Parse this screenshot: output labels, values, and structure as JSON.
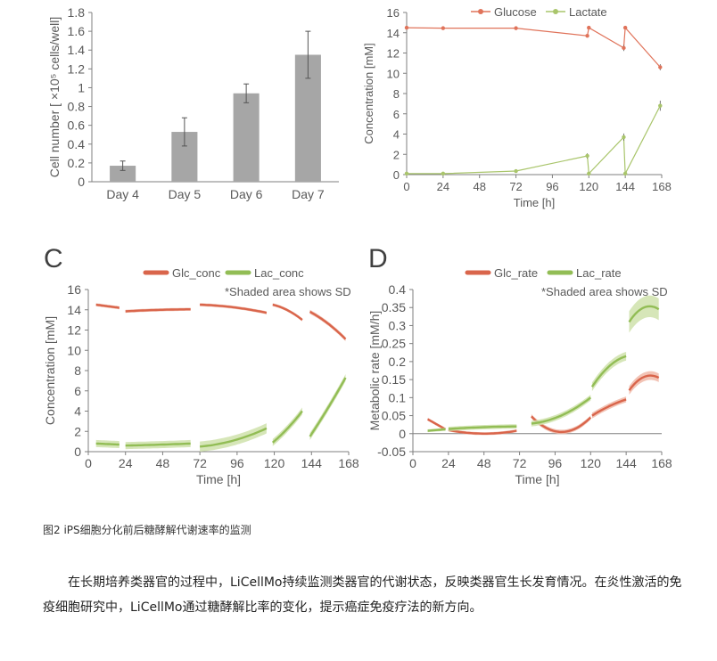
{
  "chart_data": [
    {
      "type": "bar",
      "panel": "A",
      "categories": [
        "Day 4",
        "Day 5",
        "Day 6",
        "Day 7"
      ],
      "values": [
        0.17,
        0.53,
        0.94,
        1.35
      ],
      "errors": [
        0.05,
        0.15,
        0.1,
        0.25
      ],
      "ylabel": "Cell number [ ×10⁵ cells/well]",
      "ylim": [
        0,
        1.8
      ],
      "yticks": [
        0,
        0.2,
        0.4,
        0.6,
        0.8,
        1,
        1.2,
        1.4,
        1.6,
        1.8
      ],
      "color": "#a6a6a6"
    },
    {
      "type": "line",
      "panel": "B",
      "xlabel": "Time [h]",
      "ylabel": "Concentration [mM]",
      "xlim": [
        0,
        168
      ],
      "ylim": [
        0,
        16
      ],
      "xticks": [
        0,
        24,
        48,
        72,
        96,
        120,
        144,
        168
      ],
      "yticks": [
        0,
        2,
        4,
        6,
        8,
        10,
        12,
        14,
        16
      ],
      "legend": "top",
      "series": [
        {
          "name": "Glucose",
          "color": "#e0735a",
          "x": [
            0,
            24,
            72,
            119,
            120,
            143,
            144,
            167
          ],
          "y": [
            14.5,
            14.45,
            14.45,
            13.7,
            14.5,
            12.5,
            14.5,
            10.6
          ],
          "err": [
            0.05,
            0.15,
            0.1,
            0.1,
            0.1,
            0.3,
            0.1,
            0.3
          ]
        },
        {
          "name": "Lactate",
          "color": "#a9c56b",
          "x": [
            0,
            24,
            72,
            119,
            120,
            143,
            144,
            167
          ],
          "y": [
            0.1,
            0.1,
            0.35,
            1.85,
            0.1,
            3.7,
            0.1,
            6.8
          ],
          "err": [
            0.05,
            0.05,
            0.1,
            0.25,
            0.05,
            0.35,
            0.05,
            0.5
          ]
        }
      ]
    },
    {
      "type": "area",
      "panel": "C",
      "panel_label": "C",
      "xlabel": "Time [h]",
      "ylabel": "Concentration [mM]",
      "xlim": [
        0,
        168
      ],
      "ylim": [
        0,
        16
      ],
      "xticks": [
        0,
        24,
        48,
        72,
        96,
        120,
        144,
        168
      ],
      "yticks": [
        0,
        2,
        4,
        6,
        8,
        10,
        12,
        14,
        16
      ],
      "note": "*Shaded area shows SD",
      "legend": "top",
      "series": [
        {
          "name": "Glc_conc",
          "color": "#d9654b",
          "band": "#f0b8a8",
          "segments": [
            {
              "x": [
                5,
                20
              ],
              "y": [
                14.5,
                14.2
              ],
              "sd": 0.15
            },
            {
              "x": [
                24,
                48,
                66
              ],
              "y": [
                13.85,
                14.0,
                14.05
              ],
              "sd": 0.15
            },
            {
              "x": [
                72,
                96,
                115
              ],
              "y": [
                14.5,
                14.2,
                13.7
              ],
              "sd": 0.15
            },
            {
              "x": [
                119,
                128,
                138
              ],
              "y": [
                14.5,
                14.0,
                13.0
              ],
              "sd": 0.15
            },
            {
              "x": [
                143,
                155,
                166
              ],
              "y": [
                13.8,
                12.6,
                11.1
              ],
              "sd": 0.2
            }
          ]
        },
        {
          "name": "Lac_conc",
          "color": "#92bd55",
          "band": "#cfe2ac",
          "segments": [
            {
              "x": [
                5,
                20
              ],
              "y": [
                0.8,
                0.7
              ],
              "sd": 0.35
            },
            {
              "x": [
                24,
                48,
                66
              ],
              "y": [
                0.6,
                0.7,
                0.8
              ],
              "sd": 0.35
            },
            {
              "x": [
                72,
                96,
                115
              ],
              "y": [
                0.5,
                1.2,
                2.3
              ],
              "sd": 0.5
            },
            {
              "x": [
                119,
                128,
                138
              ],
              "y": [
                0.9,
                2.2,
                4.0
              ],
              "sd": 0.35
            },
            {
              "x": [
                143,
                155,
                166
              ],
              "y": [
                1.5,
                4.4,
                7.3
              ],
              "sd": 0.35
            }
          ]
        }
      ]
    },
    {
      "type": "area",
      "panel": "D",
      "panel_label": "D",
      "xlabel": "Time [h]",
      "ylabel": "Metabolic rate [mM/h]",
      "xlim": [
        0,
        168
      ],
      "ylim": [
        -0.05,
        0.4
      ],
      "xticks": [
        0,
        24,
        48,
        72,
        96,
        120,
        144,
        168
      ],
      "yticks": [
        -0.05,
        0,
        0.05,
        0.1,
        0.15,
        0.2,
        0.25,
        0.3,
        0.35,
        0.4
      ],
      "note": "*Shaded area shows SD",
      "legend": "top",
      "series": [
        {
          "name": "Glc_rate",
          "color": "#d9654b",
          "band": "#f0b8a8",
          "segments": [
            {
              "x": [
                10,
                22
              ],
              "y": [
                0.04,
                0.012
              ],
              "sd": 0.004
            },
            {
              "x": [
                24,
                48,
                70
              ],
              "y": [
                0.01,
                0.0,
                0.008
              ],
              "sd": 0.004
            },
            {
              "x": [
                80,
                92,
                120
              ],
              "y": [
                0.048,
                0.012,
                0.045
              ],
              "sd": 0.006
            },
            {
              "x": [
                121,
                132,
                144
              ],
              "y": [
                0.05,
                0.075,
                0.095
              ],
              "sd": 0.008
            },
            {
              "x": [
                146,
                158,
                166
              ],
              "y": [
                0.12,
                0.16,
                0.155
              ],
              "sd": 0.012
            }
          ]
        },
        {
          "name": "Lac_rate",
          "color": "#92bd55",
          "band": "#cfe2ac",
          "segments": [
            {
              "x": [
                10,
                22
              ],
              "y": [
                0.008,
                0.012
              ],
              "sd": 0.004
            },
            {
              "x": [
                24,
                48,
                70
              ],
              "y": [
                0.013,
                0.018,
                0.02
              ],
              "sd": 0.006
            },
            {
              "x": [
                80,
                100,
                120
              ],
              "y": [
                0.028,
                0.05,
                0.1
              ],
              "sd": 0.008
            },
            {
              "x": [
                121,
                132,
                144
              ],
              "y": [
                0.13,
                0.185,
                0.215
              ],
              "sd": 0.012
            },
            {
              "x": [
                146,
                156,
                166
              ],
              "y": [
                0.31,
                0.35,
                0.345
              ],
              "sd": 0.03
            }
          ]
        }
      ]
    }
  ],
  "caption": "图2  iPS细胞分化前后糖酵解代谢速率的监测",
  "paragraph": "在长期培养类器官的过程中，LiCellMo持续监测类器官的代谢状态，反映类器官生长发育情况。在炎性激活的免疫细胞研究中，LiCellMo通过糖酵解比率的变化，提示癌症免疫疗法的新方向。"
}
